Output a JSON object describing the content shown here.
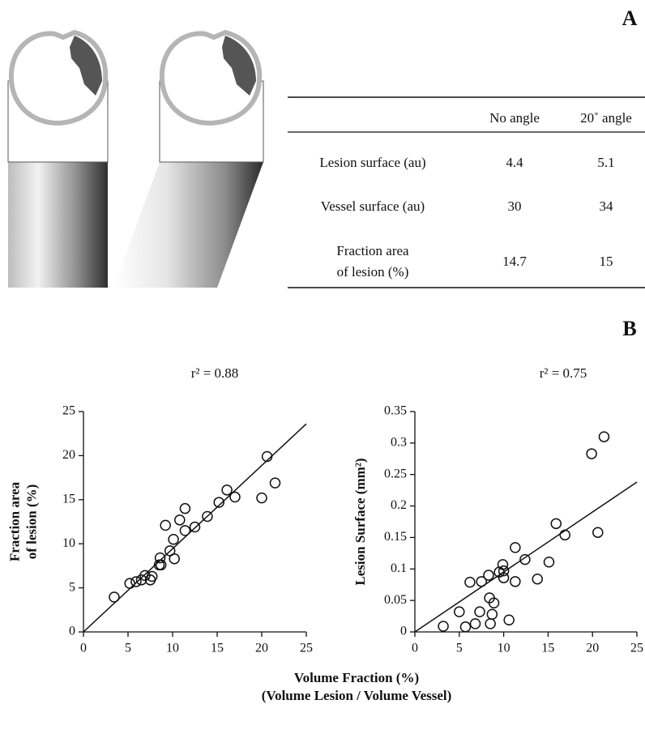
{
  "panel_a": {
    "label": "A",
    "table": {
      "header": [
        "No angle",
        "20˚ angle"
      ],
      "rows": [
        {
          "label": [
            "Lesion surface (au)"
          ],
          "values": [
            4.4,
            5.1
          ]
        },
        {
          "label": [
            "Vessel surface (au)"
          ],
          "values": [
            30,
            34
          ]
        },
        {
          "label": [
            "Fraction area",
            "of lesion (%)"
          ],
          "values": [
            14.7,
            15
          ]
        }
      ]
    }
  },
  "panel_b": {
    "label": "B",
    "x_label": [
      "Volume Fraction (%)",
      "(Volume Lesion / Volume Vessel)"
    ]
  },
  "chart_data": [
    {
      "type": "scatter",
      "annotation": "r² = 0.88",
      "y_label": [
        "Fraction area",
        "of lesion (%)"
      ],
      "xlim": [
        0,
        25
      ],
      "ylim": [
        0,
        25
      ],
      "xticks": [
        0,
        5,
        10,
        15,
        20,
        25
      ],
      "yticks": [
        0,
        5,
        10,
        15,
        20,
        25
      ],
      "x": [
        3.45,
        5.2,
        5.9,
        6.5,
        6.9,
        7.5,
        7.7,
        8.5,
        8.7,
        8.6,
        9.2,
        9.7,
        10.1,
        10.2,
        10.8,
        11.4,
        11.4,
        12.5,
        13.9,
        15.2,
        16.1,
        17.0,
        20.0,
        20.6,
        21.5
      ],
      "values": [
        3.95,
        5.5,
        5.7,
        5.9,
        6.4,
        5.9,
        6.3,
        7.6,
        7.6,
        8.4,
        12.1,
        9.2,
        10.5,
        8.3,
        12.7,
        14.0,
        11.5,
        11.9,
        13.1,
        14.7,
        16.1,
        15.3,
        15.2,
        19.9,
        16.9
      ],
      "fit": {
        "x": [
          0,
          25
        ],
        "values": [
          0,
          23.6
        ]
      }
    },
    {
      "type": "scatter",
      "annotation": "r² = 0.75",
      "y_label": [
        "Lesion Surface (mm²)"
      ],
      "xlim": [
        0,
        25
      ],
      "ylim": [
        0,
        0.35
      ],
      "xticks": [
        0,
        5,
        10,
        15,
        20,
        25
      ],
      "yticks": [
        0,
        0.05,
        0.1,
        0.15,
        0.2,
        0.25,
        0.3,
        0.35
      ],
      "x": [
        3.2,
        5.0,
        5.7,
        6.2,
        6.8,
        7.3,
        7.5,
        8.3,
        8.4,
        8.5,
        8.7,
        8.9,
        9.5,
        9.9,
        10.0,
        10.0,
        10.6,
        11.3,
        11.3,
        12.4,
        13.8,
        15.1,
        15.9,
        16.9,
        19.9,
        20.6,
        21.3
      ],
      "values": [
        0.009,
        0.032,
        0.008,
        0.079,
        0.013,
        0.032,
        0.08,
        0.09,
        0.054,
        0.013,
        0.028,
        0.046,
        0.095,
        0.107,
        0.086,
        0.097,
        0.019,
        0.134,
        0.08,
        0.115,
        0.084,
        0.111,
        0.172,
        0.154,
        0.283,
        0.158,
        0.31
      ],
      "fit": {
        "x": [
          0,
          25
        ],
        "values": [
          0,
          0.238
        ]
      }
    }
  ]
}
